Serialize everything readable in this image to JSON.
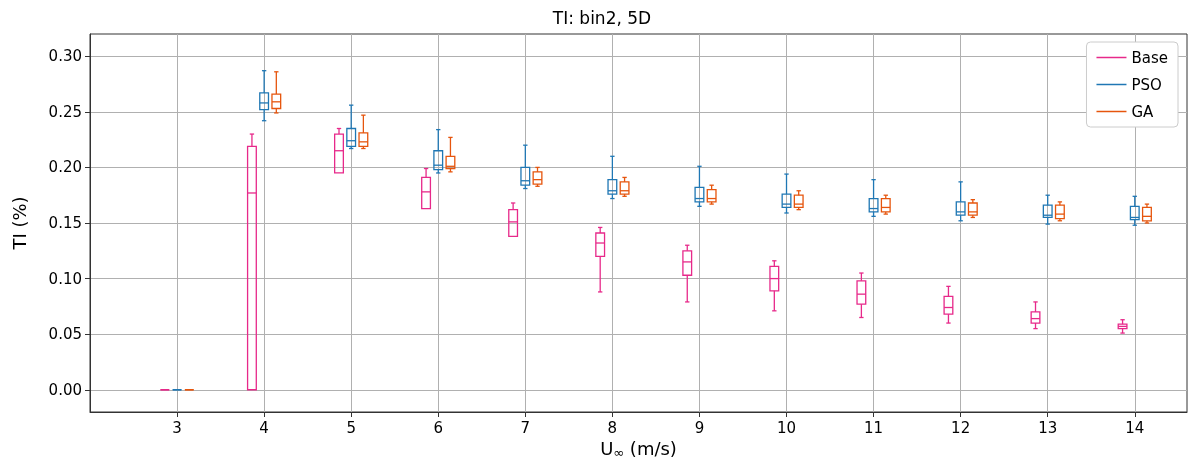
{
  "chart_data": {
    "type": "box",
    "title": "TI: bin2, 5D",
    "xlabel": "U$_{∞}$ (m/s)",
    "ylabel": "TI (%)",
    "x": [
      3,
      4,
      5,
      6,
      7,
      8,
      9,
      10,
      11,
      12,
      13,
      14
    ],
    "xlim": [
      2.0,
      14.6
    ],
    "xticks": [
      3,
      4,
      5,
      6,
      7,
      8,
      9,
      10,
      11,
      12,
      13,
      14
    ],
    "ylim": [
      -0.02,
      0.32
    ],
    "yticks": [
      {
        "value": 0,
        "label": "0.00"
      },
      {
        "value": 0.05,
        "label": "0.05"
      },
      {
        "value": 0.1,
        "label": "0.10"
      },
      {
        "value": 0.15,
        "label": "0.15"
      },
      {
        "value": 0.2,
        "label": "0.20"
      },
      {
        "value": 0.25,
        "label": "0.25"
      },
      {
        "value": 0.3,
        "label": "0.30"
      }
    ],
    "grid": true,
    "legend": "top right",
    "series": [
      {
        "name": "Base",
        "color": "#e7298a",
        "boxes": [
          {
            "low": 0,
            "q1": 0,
            "median": 0,
            "q3": 0,
            "high": 0
          },
          {
            "low": 0,
            "q1": 0,
            "median": 0.177,
            "q3": 0.219,
            "high": 0.23
          },
          {
            "low": 0.195,
            "q1": 0.195,
            "median": 0.215,
            "q3": 0.23,
            "high": 0.235
          },
          {
            "low": 0.163,
            "q1": 0.163,
            "median": 0.178,
            "q3": 0.191,
            "high": 0.199
          },
          {
            "low": 0.138,
            "q1": 0.138,
            "median": 0.151,
            "q3": 0.162,
            "high": 0.168
          },
          {
            "low": 0.088,
            "q1": 0.12,
            "median": 0.132,
            "q3": 0.141,
            "high": 0.146
          },
          {
            "low": 0.079,
            "q1": 0.103,
            "median": 0.115,
            "q3": 0.125,
            "high": 0.13
          },
          {
            "low": 0.071,
            "q1": 0.089,
            "median": 0.1,
            "q3": 0.111,
            "high": 0.116
          },
          {
            "low": 0.065,
            "q1": 0.077,
            "median": 0.086,
            "q3": 0.098,
            "high": 0.105
          },
          {
            "low": 0.06,
            "q1": 0.068,
            "median": 0.074,
            "q3": 0.084,
            "high": 0.093
          },
          {
            "low": 0.055,
            "q1": 0.06,
            "median": 0.064,
            "q3": 0.07,
            "high": 0.079
          },
          {
            "low": 0.051,
            "q1": 0.055,
            "median": 0.057,
            "q3": 0.059,
            "high": 0.063
          }
        ]
      },
      {
        "name": "PSO",
        "color": "#1f77b4",
        "boxes": [
          {
            "low": 0,
            "q1": 0,
            "median": 0,
            "q3": 0,
            "high": 0
          },
          {
            "low": 0.242,
            "q1": 0.252,
            "median": 0.258,
            "q3": 0.267,
            "high": 0.287
          },
          {
            "low": 0.217,
            "q1": 0.219,
            "median": 0.224,
            "q3": 0.235,
            "high": 0.256
          },
          {
            "low": 0.195,
            "q1": 0.198,
            "median": 0.202,
            "q3": 0.215,
            "high": 0.234
          },
          {
            "low": 0.181,
            "q1": 0.184,
            "median": 0.188,
            "q3": 0.2,
            "high": 0.22
          },
          {
            "low": 0.172,
            "q1": 0.176,
            "median": 0.179,
            "q3": 0.189,
            "high": 0.21
          },
          {
            "low": 0.165,
            "q1": 0.169,
            "median": 0.172,
            "q3": 0.182,
            "high": 0.201
          },
          {
            "low": 0.159,
            "q1": 0.164,
            "median": 0.167,
            "q3": 0.176,
            "high": 0.194
          },
          {
            "low": 0.156,
            "q1": 0.16,
            "median": 0.163,
            "q3": 0.172,
            "high": 0.189
          },
          {
            "low": 0.152,
            "q1": 0.157,
            "median": 0.16,
            "q3": 0.169,
            "high": 0.187
          },
          {
            "low": 0.149,
            "q1": 0.155,
            "median": 0.157,
            "q3": 0.166,
            "high": 0.175
          },
          {
            "low": 0.148,
            "q1": 0.153,
            "median": 0.155,
            "q3": 0.165,
            "high": 0.174
          }
        ]
      },
      {
        "name": "GA",
        "color": "#e6550d",
        "boxes": [
          {
            "low": 0,
            "q1": 0,
            "median": 0,
            "q3": 0,
            "high": 0
          },
          {
            "low": 0.249,
            "q1": 0.253,
            "median": 0.259,
            "q3": 0.266,
            "high": 0.286
          },
          {
            "low": 0.217,
            "q1": 0.219,
            "median": 0.223,
            "q3": 0.231,
            "high": 0.247
          },
          {
            "low": 0.196,
            "q1": 0.199,
            "median": 0.201,
            "q3": 0.21,
            "high": 0.227
          },
          {
            "low": 0.183,
            "q1": 0.185,
            "median": 0.189,
            "q3": 0.196,
            "high": 0.2
          },
          {
            "low": 0.174,
            "q1": 0.176,
            "median": 0.179,
            "q3": 0.187,
            "high": 0.191
          },
          {
            "low": 0.167,
            "q1": 0.169,
            "median": 0.172,
            "q3": 0.18,
            "high": 0.184
          },
          {
            "low": 0.162,
            "q1": 0.164,
            "median": 0.167,
            "q3": 0.175,
            "high": 0.179
          },
          {
            "low": 0.158,
            "q1": 0.16,
            "median": 0.164,
            "q3": 0.172,
            "high": 0.175
          },
          {
            "low": 0.155,
            "q1": 0.157,
            "median": 0.16,
            "q3": 0.168,
            "high": 0.171
          },
          {
            "low": 0.152,
            "q1": 0.154,
            "median": 0.158,
            "q3": 0.166,
            "high": 0.169
          },
          {
            "low": 0.15,
            "q1": 0.152,
            "median": 0.156,
            "q3": 0.164,
            "high": 0.167
          }
        ]
      }
    ]
  }
}
